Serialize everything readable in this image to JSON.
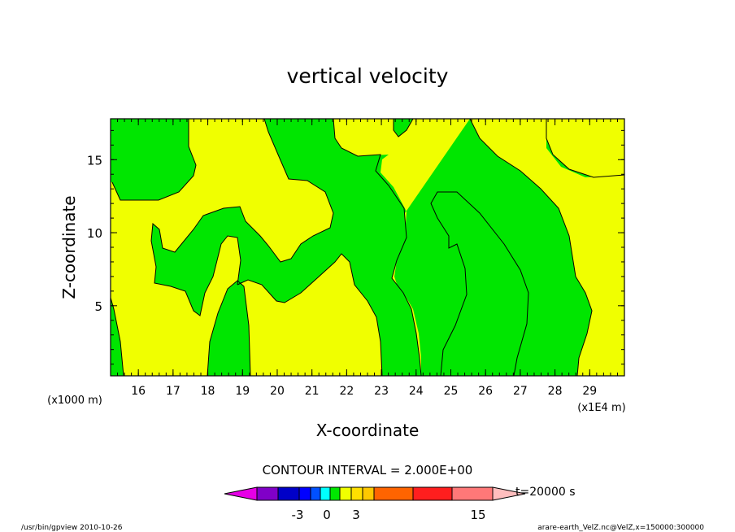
{
  "chart_data": {
    "type": "heatmap",
    "title": "vertical velocity",
    "xlabel": "X-coordinate",
    "ylabel": "Z-coordinate",
    "x_unit_label": "(x1E4 m)",
    "y_unit_label": "(x1000 m)",
    "xlim": [
      15.2,
      30.0
    ],
    "ylim": [
      0.2,
      17.8
    ],
    "x_ticks": [
      "16",
      "17",
      "18",
      "19",
      "20",
      "21",
      "22",
      "23",
      "24",
      "25",
      "26",
      "27",
      "28",
      "29"
    ],
    "y_ticks": [
      "5",
      "10",
      "15"
    ],
    "contour_interval_label": "CONTOUR INTERVAL = 2.000E+00",
    "time_label": "t=20000 s",
    "colorbar_labels": [
      "-3",
      "0",
      "3",
      "15"
    ],
    "colors": {
      "band_low": "#00e600",
      "band_high": "#f0ff00",
      "colorbar": [
        "#e600e6",
        "#8000c8",
        "#0000c8",
        "#0000ff",
        "#0050ff",
        "#00ffff",
        "#00e600",
        "#f0ff00",
        "#ffe000",
        "#ffc800",
        "#ff6400",
        "#ff1e1e",
        "#ff7878",
        "#ffbebe"
      ]
    }
  },
  "footer": {
    "left": "/usr/bin/gpview   2010-10-26",
    "right": "arare-earth_VelZ.nc@VelZ,x=150000:300000"
  }
}
